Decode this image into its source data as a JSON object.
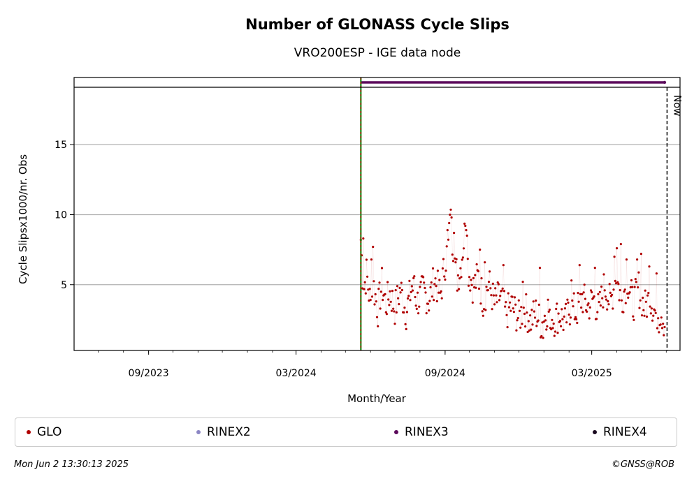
{
  "chart_data": {
    "type": "scatter",
    "title": "Number of GLONASS Cycle Slips",
    "subtitle": "VRO200ESP - IGE data node",
    "xlabel": "Month/Year",
    "ylabel": "Cycle Slipsx1000/nr. Obs",
    "x_range": [
      "2023-06-01",
      "2025-06-18"
    ],
    "ylim": [
      0.3,
      19.8
    ],
    "yticks": [
      5,
      10,
      15
    ],
    "xticks": [
      {
        "date": "2023-09-01",
        "label": "09/2023"
      },
      {
        "date": "2024-03-01",
        "label": "03/2024"
      },
      {
        "date": "2024-09-01",
        "label": "09/2024"
      },
      {
        "date": "2025-03-01",
        "label": "03/2025"
      }
    ],
    "grid": "horizontal",
    "start_marker_date": "2024-05-20",
    "now_marker": {
      "date": "2025-06-02",
      "label": "Now"
    },
    "rinex3_bar": {
      "start": "2024-05-20",
      "end": "2025-05-30",
      "color": "#5c0b5c"
    },
    "series": [
      {
        "name": "GLO",
        "color": "#b00000",
        "anchors": [
          [
            "2024-05-20",
            8.2
          ],
          [
            "2024-05-23",
            4.5
          ],
          [
            "2024-05-27",
            5.8
          ],
          [
            "2024-06-01",
            3.5
          ],
          [
            "2024-06-05",
            4.8
          ],
          [
            "2024-06-10",
            3.2
          ],
          [
            "2024-06-15",
            5.0
          ],
          [
            "2024-06-20",
            3.6
          ],
          [
            "2024-06-25",
            4.4
          ],
          [
            "2024-07-01",
            3.3
          ],
          [
            "2024-07-08",
            4.7
          ],
          [
            "2024-07-15",
            3.0
          ],
          [
            "2024-07-22",
            4.9
          ],
          [
            "2024-07-29",
            3.8
          ],
          [
            "2024-08-05",
            4.6
          ],
          [
            "2024-08-12",
            3.9
          ],
          [
            "2024-08-19",
            5.4
          ],
          [
            "2024-08-26",
            4.2
          ],
          [
            "2024-09-01",
            6.6
          ],
          [
            "2024-09-05",
            7.8
          ],
          [
            "2024-09-08",
            9.5
          ],
          [
            "2024-09-12",
            7.2
          ],
          [
            "2024-09-16",
            5.5
          ],
          [
            "2024-09-20",
            6.2
          ],
          [
            "2024-09-25",
            8.6
          ],
          [
            "2024-09-30",
            6.0
          ],
          [
            "2024-10-06",
            4.8
          ],
          [
            "2024-10-12",
            5.6
          ],
          [
            "2024-10-18",
            3.9
          ],
          [
            "2024-10-25",
            5.1
          ],
          [
            "2024-11-01",
            3.6
          ],
          [
            "2024-11-08",
            4.2
          ],
          [
            "2024-11-15",
            2.9
          ],
          [
            "2024-11-22",
            3.5
          ],
          [
            "2024-12-01",
            2.6
          ],
          [
            "2024-12-08",
            3.4
          ],
          [
            "2024-12-15",
            2.4
          ],
          [
            "2024-12-22",
            3.0
          ],
          [
            "2024-12-29",
            2.2
          ],
          [
            "2025-01-06",
            3.3
          ],
          [
            "2025-01-13",
            2.5
          ],
          [
            "2025-01-20",
            2.9
          ],
          [
            "2025-01-27",
            2.3
          ],
          [
            "2025-02-03",
            3.4
          ],
          [
            "2025-02-10",
            3.0
          ],
          [
            "2025-02-17",
            4.1
          ],
          [
            "2025-02-24",
            3.4
          ],
          [
            "2025-03-03",
            4.0
          ],
          [
            "2025-03-10",
            3.1
          ],
          [
            "2025-03-17",
            5.0
          ],
          [
            "2025-03-24",
            3.6
          ],
          [
            "2025-03-31",
            5.6
          ],
          [
            "2025-04-07",
            3.9
          ],
          [
            "2025-04-14",
            5.4
          ],
          [
            "2025-04-21",
            3.6
          ],
          [
            "2025-04-28",
            4.8
          ],
          [
            "2025-05-05",
            3.3
          ],
          [
            "2025-05-12",
            4.1
          ],
          [
            "2025-05-19",
            2.9
          ],
          [
            "2025-05-26",
            3.1
          ],
          [
            "2025-05-30",
            2.2
          ]
        ],
        "points": [
          [
            "2024-05-20",
            8.2
          ],
          [
            "2024-05-21",
            7.1
          ],
          [
            "2024-05-23",
            8.3
          ],
          [
            "2024-06-02",
            6.8
          ],
          [
            "2024-06-04",
            7.7
          ],
          [
            "2024-07-25",
            5.6
          ],
          [
            "2024-09-04",
            8.9
          ],
          [
            "2024-09-06",
            9.4
          ],
          [
            "2024-09-07",
            10.0
          ],
          [
            "2024-09-09",
            9.8
          ],
          [
            "2024-09-12",
            8.7
          ],
          [
            "2024-09-14",
            6.6
          ],
          [
            "2024-09-26",
            9.2
          ],
          [
            "2024-09-27",
            8.9
          ],
          [
            "2024-09-28",
            8.5
          ],
          [
            "2024-10-14",
            7.5
          ],
          [
            "2024-10-20",
            6.6
          ],
          [
            "2024-11-12",
            6.4
          ],
          [
            "2024-12-27",
            6.2
          ],
          [
            "2024-12-06",
            5.2
          ],
          [
            "2024-12-31",
            1.2
          ],
          [
            "2025-01-09",
            1.9
          ],
          [
            "2025-02-04",
            5.3
          ],
          [
            "2025-02-14",
            6.4
          ],
          [
            "2025-03-05",
            6.2
          ],
          [
            "2025-03-29",
            7.0
          ],
          [
            "2025-04-01",
            7.6
          ],
          [
            "2025-04-06",
            7.9
          ],
          [
            "2025-04-13",
            6.8
          ],
          [
            "2025-04-26",
            6.8
          ],
          [
            "2025-05-01",
            7.2
          ],
          [
            "2025-05-11",
            6.3
          ],
          [
            "2025-05-20",
            5.8
          ],
          [
            "2025-05-23",
            1.6
          ],
          [
            "2025-05-27",
            1.9
          ]
        ]
      },
      {
        "name": "RINEX2",
        "color": "#8b86c4"
      },
      {
        "name": "RINEX3",
        "color": "#5c0b5c"
      },
      {
        "name": "RINEX4",
        "color": "#1a0a1f"
      }
    ]
  },
  "footer": {
    "timestamp": "Mon Jun  2 13:30:13 2025",
    "credit": "©GNSS@ROB"
  }
}
